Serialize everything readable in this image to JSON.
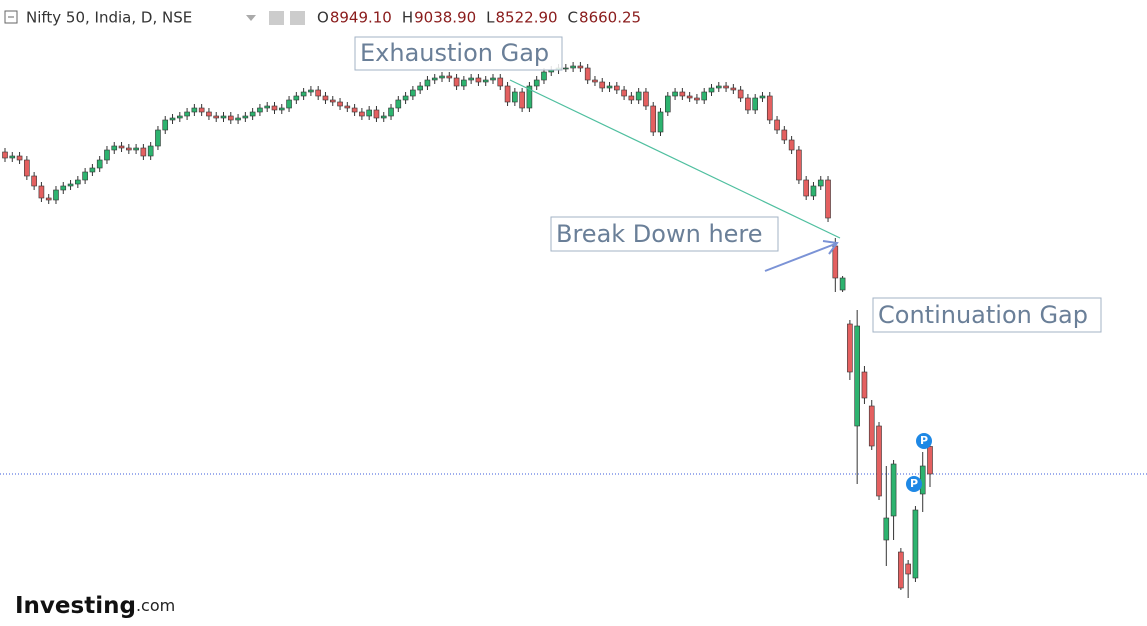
{
  "chart_data": {
    "type": "candlestick",
    "title": "Nifty 50, India, D, NSE",
    "legend_keys": [
      "O",
      "H",
      "L",
      "C"
    ],
    "legend_values": [
      "8949.10",
      "9038.90",
      "8522.90",
      "8660.25"
    ],
    "annotations": [
      "Exhaustion Gap",
      "Break Down here",
      "Continuation Gap"
    ],
    "brand": [
      "Investing",
      ".com"
    ],
    "up_color": "#2db36f",
    "down_color": "#e46060",
    "last_line_color": "#3b5bdb",
    "ylim": [
      7064,
      13637
    ],
    "open": [
      12041,
      11978,
      11999,
      11957,
      11789,
      11684,
      11558,
      11537,
      11642,
      11684,
      11705,
      11747,
      11831,
      11873,
      11957,
      12062,
      12104,
      12083,
      12062,
      12083,
      11999,
      12104,
      12272,
      12377,
      12398,
      12419,
      12461,
      12503,
      12461,
      12419,
      12398,
      12419,
      12377,
      12398,
      12419,
      12461,
      12503,
      12524,
      12482,
      12503,
      12587,
      12629,
      12671,
      12692,
      12629,
      12587,
      12566,
      12524,
      12503,
      12461,
      12419,
      12482,
      12398,
      12419,
      12503,
      12587,
      12629,
      12692,
      12734,
      12797,
      12818,
      12839,
      12818,
      12734,
      12797,
      12818,
      12776,
      12797,
      12818,
      12734,
      12566,
      12671,
      12503,
      12734,
      12797,
      12881,
      12902,
      12923,
      12923,
      12944,
      12923,
      12797,
      12776,
      12713,
      12734,
      12692,
      12629,
      12587,
      12671,
      12524,
      12251,
      12461,
      12629,
      12671,
      12629,
      12608,
      12587,
      12671,
      12713,
      12734,
      12713,
      12692,
      12608,
      12482,
      12608,
      12629,
      12377,
      12272,
      12167,
      12062,
      11747,
      11579,
      11684,
      11747,
      11054,
      10592,
      10235,
      9164,
      9731,
      9374,
      9164,
      7967,
      8219,
      7841,
      7715,
      7568,
      8450,
      8949.1
    ],
    "high": [
      12083,
      12041,
      12041,
      11999,
      11831,
      11726,
      11600,
      11684,
      11726,
      11747,
      11789,
      11873,
      11915,
      11999,
      12104,
      12146,
      12146,
      12125,
      12125,
      12125,
      12146,
      12314,
      12419,
      12440,
      12461,
      12503,
      12545,
      12545,
      12503,
      12461,
      12461,
      12461,
      12440,
      12461,
      12503,
      12545,
      12566,
      12566,
      12545,
      12629,
      12671,
      12713,
      12734,
      12734,
      12671,
      12629,
      12608,
      12566,
      12545,
      12503,
      12524,
      12524,
      12461,
      12545,
      12629,
      12671,
      12734,
      12776,
      12839,
      12860,
      12881,
      12881,
      12860,
      12839,
      12860,
      12860,
      12839,
      12860,
      12860,
      12776,
      12713,
      12713,
      12776,
      12839,
      12923,
      12944,
      12965,
      12965,
      12986,
      12986,
      12965,
      12839,
      12818,
      12776,
      12776,
      12734,
      12671,
      12713,
      12713,
      12566,
      12503,
      12671,
      12713,
      12713,
      12671,
      12650,
      12713,
      12755,
      12776,
      12776,
      12755,
      12734,
      12650,
      12650,
      12671,
      12671,
      12419,
      12314,
      12209,
      12104,
      11789,
      11726,
      11789,
      11789,
      11138,
      10739,
      10277,
      10382,
      9794,
      9437,
      9206,
      8744,
      8807,
      7883,
      7757,
      8324,
      8891,
      9038.9
    ],
    "low": [
      11936,
      11936,
      11915,
      11747,
      11642,
      11516,
      11495,
      11495,
      11600,
      11642,
      11663,
      11705,
      11789,
      11831,
      11915,
      12020,
      12041,
      12020,
      12020,
      11957,
      11957,
      12062,
      12230,
      12335,
      12356,
      12377,
      12419,
      12419,
      12377,
      12356,
      12356,
      12335,
      12335,
      12356,
      12377,
      12419,
      12461,
      12440,
      12440,
      12461,
      12545,
      12587,
      12629,
      12587,
      12545,
      12524,
      12482,
      12461,
      12419,
      12377,
      12377,
      12356,
      12356,
      12377,
      12461,
      12545,
      12587,
      12650,
      12692,
      12755,
      12776,
      12776,
      12692,
      12692,
      12755,
      12734,
      12734,
      12755,
      12692,
      12524,
      12524,
      12461,
      12461,
      12692,
      12755,
      12839,
      12860,
      12881,
      12881,
      12881,
      12755,
      12734,
      12671,
      12671,
      12650,
      12587,
      12545,
      12545,
      12482,
      12209,
      12209,
      12419,
      12587,
      12587,
      12566,
      12545,
      12545,
      12629,
      12671,
      12671,
      12650,
      12566,
      12440,
      12440,
      12566,
      12335,
      12230,
      12125,
      12020,
      11705,
      11537,
      11537,
      11642,
      11306,
      10571,
      10571,
      9647,
      8555,
      9395,
      8912,
      8387,
      7694,
      7967,
      7442,
      7358,
      7526,
      8261,
      8522.9
    ],
    "close": [
      11978,
      11999,
      11957,
      11789,
      11684,
      11558,
      11537,
      11642,
      11684,
      11705,
      11747,
      11831,
      11873,
      11957,
      12062,
      12104,
      12083,
      12062,
      12083,
      11999,
      12104,
      12272,
      12377,
      12398,
      12419,
      12461,
      12503,
      12461,
      12419,
      12398,
      12419,
      12377,
      12398,
      12419,
      12461,
      12503,
      12524,
      12482,
      12503,
      12587,
      12629,
      12671,
      12692,
      12629,
      12587,
      12566,
      12524,
      12503,
      12461,
      12419,
      12482,
      12398,
      12419,
      12503,
      12587,
      12629,
      12692,
      12734,
      12797,
      12818,
      12839,
      12818,
      12734,
      12797,
      12818,
      12776,
      12797,
      12818,
      12734,
      12566,
      12671,
      12503,
      12734,
      12797,
      12881,
      12902,
      12923,
      12923,
      12944,
      12923,
      12797,
      12776,
      12713,
      12734,
      12692,
      12629,
      12587,
      12671,
      12524,
      12251,
      12461,
      12629,
      12671,
      12629,
      12608,
      12587,
      12671,
      12713,
      12734,
      12713,
      12692,
      12608,
      12482,
      12608,
      12629,
      12377,
      12272,
      12167,
      12062,
      11747,
      11579,
      11684,
      11747,
      11348,
      10718,
      10718,
      9731,
      10214,
      9458,
      8954,
      8429,
      8198,
      8765,
      7463,
      7610,
      8282,
      8744,
      8660.25
    ]
  }
}
